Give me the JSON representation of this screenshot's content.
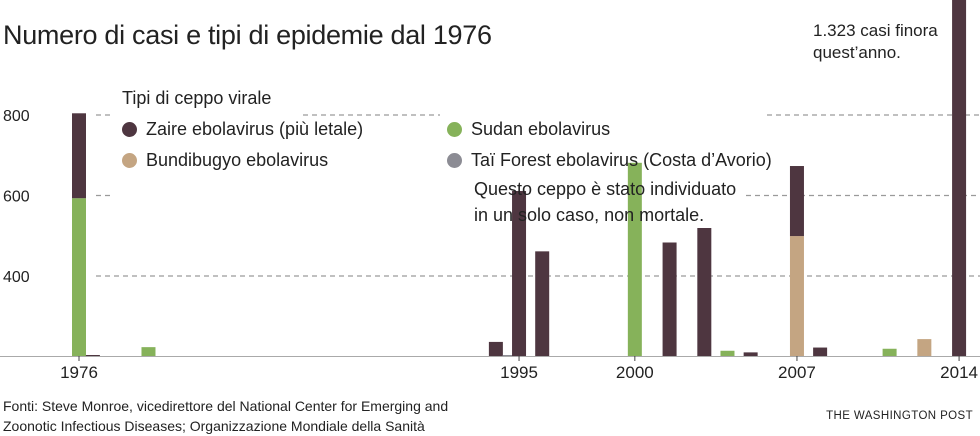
{
  "chart_data": {
    "type": "bar",
    "title": "Numero di casi e tipi di epidemie dal 1976",
    "xlabel": "",
    "ylabel": "",
    "ylim": [
      200,
      800
    ],
    "yticks": [
      800,
      600,
      400
    ],
    "xticks": [
      "1976",
      "1995",
      "2000",
      "2007",
      "2014"
    ],
    "grid": "horizontal dashed",
    "legend": {
      "title": "Tipi di ceppo virale",
      "placement": "top-left",
      "entries": [
        {
          "key": "zaire",
          "label": "Zaire ebolavirus (più letale)",
          "color": "#4e3640"
        },
        {
          "key": "sudan",
          "label": "Sudan ebolavirus",
          "color": "#86b25a"
        },
        {
          "key": "bundibugyo",
          "label": "Bundibugyo ebolavirus",
          "color": "#c4a582"
        },
        {
          "key": "tai",
          "label": "Taï Forest ebolavirus (Costa d’Avorio)",
          "color": "#8c8c94"
        }
      ]
    },
    "note": [
      "Questo ceppo è stato individuato",
      "in un solo caso, non mortale."
    ],
    "annotation": [
      "1.323 casi finora",
      "quest’anno."
    ],
    "bars": [
      {
        "x": 1976.0,
        "stack": [
          {
            "series": "sudan",
            "value": 392
          },
          {
            "series": "zaire",
            "value": 211
          }
        ]
      },
      {
        "x": 1976.6,
        "stack": [
          {
            "series": "zaire",
            "value": 1
          }
        ]
      },
      {
        "x": 1979.0,
        "stack": [
          {
            "series": "sudan",
            "value": 22
          }
        ]
      },
      {
        "x": 1994.0,
        "stack": [
          {
            "series": "zaire",
            "value": 35
          }
        ]
      },
      {
        "x": 1994.6,
        "stack": [
          {
            "series": "tai",
            "value": 1
          }
        ]
      },
      {
        "x": 1995.0,
        "stack": [
          {
            "series": "zaire",
            "value": 410
          }
        ]
      },
      {
        "x": 1996.0,
        "stack": [
          {
            "series": "zaire",
            "value": 260
          }
        ]
      },
      {
        "x": 2000.0,
        "stack": [
          {
            "series": "sudan",
            "value": 480
          }
        ]
      },
      {
        "x": 2001.5,
        "stack": [
          {
            "series": "zaire",
            "value": 282
          }
        ]
      },
      {
        "x": 2003.0,
        "stack": [
          {
            "series": "zaire",
            "value": 318
          }
        ]
      },
      {
        "x": 2004.0,
        "stack": [
          {
            "series": "sudan",
            "value": 13
          }
        ]
      },
      {
        "x": 2005.0,
        "stack": [
          {
            "series": "zaire",
            "value": 9
          }
        ]
      },
      {
        "x": 2007.0,
        "stack": [
          {
            "series": "bundibugyo",
            "value": 298
          },
          {
            "series": "zaire",
            "value": 174
          }
        ]
      },
      {
        "x": 2008.0,
        "stack": [
          {
            "series": "zaire",
            "value": 21
          }
        ]
      },
      {
        "x": 2011.0,
        "stack": [
          {
            "series": "sudan",
            "value": 18
          }
        ]
      },
      {
        "x": 2012.5,
        "stack": [
          {
            "series": "bundibugyo",
            "value": 42
          }
        ]
      },
      {
        "x": 2014.0,
        "stack": [
          {
            "series": "zaire",
            "value": 1323
          }
        ]
      }
    ]
  },
  "source": [
    "Fonti: Steve Monroe, vicedirettore del National Center for Emerging and",
    "Zoonotic Infectious Diseases; Organizzazione Mondiale della Sanità"
  ],
  "brand": "THE WASHINGTON POST"
}
